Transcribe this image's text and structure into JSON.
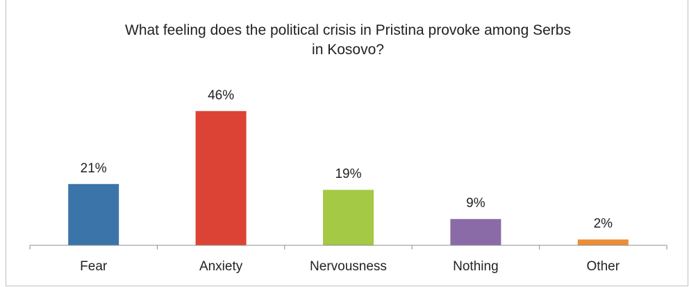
{
  "chart_data": {
    "type": "bar",
    "title_lines": [
      "What feeling does the political crisis in Pristina provoke among Serbs",
      "in Kosovo?"
    ],
    "categories": [
      "Fear",
      "Anxiety",
      "Nervousness",
      "Nothing",
      "Other"
    ],
    "values": [
      21,
      46,
      19,
      9,
      2
    ],
    "data_labels": [
      "21%",
      "46%",
      "19%",
      "9%",
      "2%"
    ],
    "colors": [
      "#3a74a8",
      "#dd4334",
      "#a4c944",
      "#8a6ba8",
      "#ec8d37"
    ],
    "unit": "%",
    "ylim": [
      0,
      50
    ],
    "grid": false,
    "legend": "none",
    "xlabel": "",
    "ylabel": ""
  }
}
